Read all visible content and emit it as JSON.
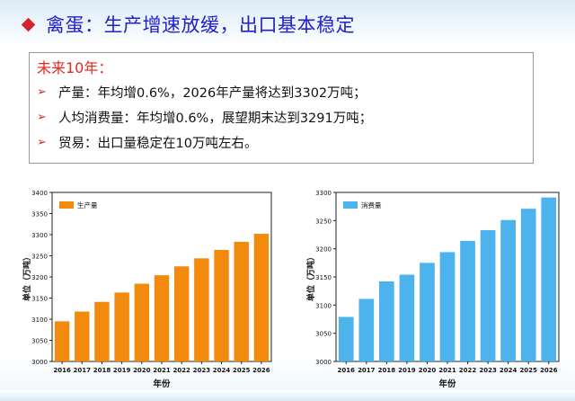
{
  "slide": {
    "title": "禽蛋：生产增速放缓，出口基本稳定"
  },
  "summary": {
    "heading": "未来10年：",
    "lines": [
      "产量：年均增0.6%，2026年产量将达到3302万吨；",
      "人均消费量：年均增0.6%，展望期末达到3291万吨；",
      "贸易：出口量稳定在10万吨左右。"
    ]
  },
  "colors": {
    "title": "#2020d0",
    "heading": "#e0281e",
    "production": "#f28a0e",
    "consumption": "#4db3ec"
  },
  "chart_data": [
    {
      "type": "bar",
      "categories": [
        "2016",
        "2017",
        "2018",
        "2019",
        "2020",
        "2021",
        "2022",
        "2023",
        "2024",
        "2025",
        "2026"
      ],
      "series": [
        {
          "name": "生产量",
          "values": [
            3095,
            3118,
            3141,
            3163,
            3184,
            3204,
            3225,
            3244,
            3264,
            3283,
            3302
          ]
        }
      ],
      "xlabel": "年份",
      "ylabel": "单位（万吨）",
      "ylim": [
        3000,
        3400
      ],
      "yticks": [
        3000,
        3050,
        3100,
        3150,
        3200,
        3250,
        3300,
        3350,
        3400
      ],
      "legend": "top-left",
      "color": "#f28a0e"
    },
    {
      "type": "bar",
      "categories": [
        "2016",
        "2017",
        "2018",
        "2019",
        "2020",
        "2021",
        "2022",
        "2023",
        "2024",
        "2025",
        "2026"
      ],
      "series": [
        {
          "name": "消费量",
          "values": [
            3079,
            3111,
            3142,
            3154,
            3175,
            3194,
            3214,
            3233,
            3251,
            3271,
            3291
          ]
        }
      ],
      "xlabel": "年份",
      "ylabel": "单位（万吨）",
      "ylim": [
        3000,
        3300
      ],
      "yticks": [
        3000,
        3050,
        3100,
        3150,
        3200,
        3250,
        3300
      ],
      "legend": "top-left",
      "color": "#4db3ec"
    }
  ]
}
